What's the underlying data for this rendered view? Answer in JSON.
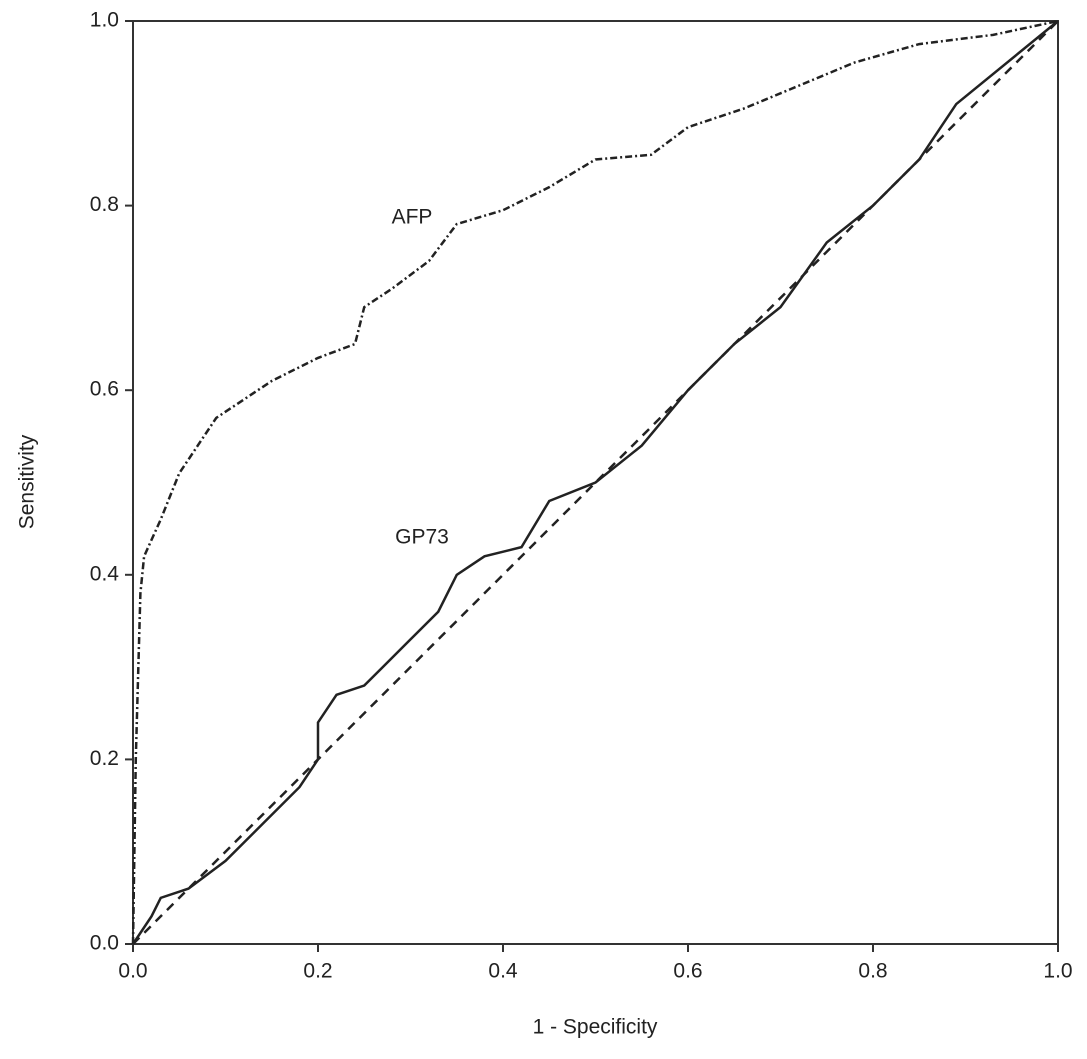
{
  "chart_data": {
    "type": "line",
    "x_label": "1 - Specificity",
    "y_label": "Sensitivity",
    "annotations": [
      "AFP",
      "GP73"
    ],
    "xlim": [
      0,
      1
    ],
    "ylim": [
      0,
      1
    ],
    "xticks": [
      {
        "value": 0,
        "label": "0.0"
      },
      0.2,
      0.4,
      0.6,
      0.8,
      {
        "value": 1,
        "label": "1.0"
      }
    ],
    "yticks": [
      {
        "value": 0,
        "label": "0.0"
      },
      0.2,
      0.4,
      0.6,
      0.8,
      {
        "value": 1,
        "label": "1.0"
      }
    ],
    "series": [
      {
        "color": "#222222",
        "dash": "dashdot",
        "x": [
          0,
          0.003,
          0.008,
          0.012,
          0.03,
          0.05,
          0.07,
          0.09,
          0.12,
          0.15,
          0.2,
          0.24,
          0.25,
          0.28,
          0.32,
          0.35,
          0.4,
          0.45,
          0.5,
          0.56,
          0.6,
          0.66,
          0.72,
          0.78,
          0.85,
          0.93,
          1
        ],
        "values": [
          0,
          0.2,
          0.38,
          0.42,
          0.46,
          0.51,
          0.54,
          0.57,
          0.59,
          0.61,
          0.635,
          0.65,
          0.69,
          0.71,
          0.74,
          0.78,
          0.795,
          0.82,
          0.85,
          0.855,
          0.885,
          0.905,
          0.93,
          0.955,
          0.975,
          0.985,
          1
        ]
      },
      {
        "color": "#222222",
        "dash": "solid",
        "x": [
          0,
          0.02,
          0.03,
          0.06,
          0.1,
          0.14,
          0.18,
          0.2,
          0.2,
          0.22,
          0.25,
          0.27,
          0.3,
          0.33,
          0.35,
          0.38,
          0.42,
          0.45,
          0.5,
          0.55,
          0.6,
          0.65,
          0.7,
          0.75,
          0.8,
          0.85,
          0.89,
          1
        ],
        "values": [
          0,
          0.03,
          0.05,
          0.06,
          0.09,
          0.13,
          0.17,
          0.2,
          0.24,
          0.27,
          0.28,
          0.3,
          0.33,
          0.36,
          0.4,
          0.42,
          0.43,
          0.48,
          0.5,
          0.54,
          0.6,
          0.65,
          0.69,
          0.76,
          0.8,
          0.85,
          0.91,
          1
        ]
      },
      {
        "color": "#222222",
        "dash": "dashed",
        "x": [
          0,
          1
        ],
        "values": [
          0,
          1
        ]
      }
    ]
  }
}
